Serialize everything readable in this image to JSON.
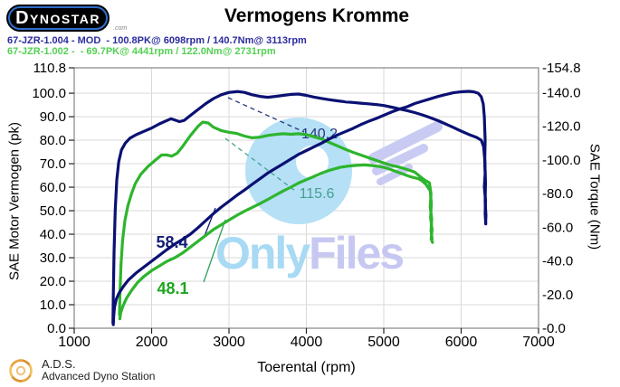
{
  "header": {
    "logo": {
      "text": "DYNOSTAR",
      "suffix": ".com"
    },
    "title": "Vermogens Kromme",
    "runs": [
      {
        "label": "67-JZR-1.004 - MOD  - 100.8PK@ 6098rpm / 140.7Nm@ 3113rpm",
        "color": "#2b2b9e"
      },
      {
        "label": "67-JZR-1.002 -  - 69.7PK@ 4441rpm / 122.0Nm@ 2731rpm",
        "color": "#53d053"
      }
    ]
  },
  "chart_data": {
    "type": "line",
    "title": "Vermogens Kromme",
    "xlabel": "Toerental (rpm)",
    "ylabel_left": "SAE Motor Vermogen (pk)",
    "ylabel_right": "SAE Torque (Nm)",
    "xlim": [
      1000,
      7000
    ],
    "ylim_left": [
      0,
      110.8
    ],
    "ylim_right": [
      0,
      154.8
    ],
    "grid": true,
    "grid_color": "#d9d9d9",
    "border_color": "#6e6e6e",
    "tick_color": "#222222",
    "x_ticks": [
      1000,
      2000,
      3000,
      4000,
      5000,
      6000,
      7000
    ],
    "y_ticks_left": {
      "labels": [
        "110.8",
        "100.0",
        "90.0",
        "80.0",
        "70.0",
        "60.0",
        "50.0",
        "40.0",
        "30.0",
        "20.0",
        "10.0",
        "0.0"
      ],
      "values": [
        110.8,
        100,
        90,
        80,
        70,
        60,
        50,
        40,
        30,
        20,
        10,
        0
      ]
    },
    "y_ticks_right": {
      "labels": [
        "-154.8",
        "-140.0",
        "-120.0",
        "-100.0",
        "-80.0",
        "-60.0",
        "-40.0",
        "-20.0",
        "-0.0"
      ],
      "values": [
        154.8,
        140,
        120,
        100,
        80,
        60,
        40,
        20,
        0
      ]
    },
    "series": [
      {
        "name": "torque-run-002",
        "axis": "right",
        "color": "#2db52d",
        "points": [
          [
            1585,
            8
          ],
          [
            1592,
            22
          ],
          [
            1605,
            38
          ],
          [
            1625,
            52
          ],
          [
            1655,
            64
          ],
          [
            1695,
            73
          ],
          [
            1740,
            80
          ],
          [
            1790,
            86
          ],
          [
            1860,
            91.5
          ],
          [
            1950,
            96
          ],
          [
            2050,
            100
          ],
          [
            2130,
            103
          ],
          [
            2200,
            103
          ],
          [
            2260,
            102.3
          ],
          [
            2330,
            104
          ],
          [
            2400,
            108
          ],
          [
            2500,
            114.5
          ],
          [
            2600,
            120
          ],
          [
            2660,
            122.5
          ],
          [
            2731,
            122
          ],
          [
            2800,
            119.5
          ],
          [
            2900,
            117.5
          ],
          [
            3000,
            116.5
          ],
          [
            3100,
            115.8
          ],
          [
            3200,
            114.2
          ],
          [
            3300,
            113.2
          ],
          [
            3400,
            113.6
          ],
          [
            3500,
            114.6
          ],
          [
            3600,
            115.2
          ],
          [
            3700,
            115.6
          ],
          [
            3800,
            115.3
          ],
          [
            3900,
            115.6
          ],
          [
            4000,
            115.1
          ],
          [
            4100,
            113.8
          ],
          [
            4200,
            112.4
          ],
          [
            4300,
            110.4
          ],
          [
            4400,
            108.4
          ],
          [
            4500,
            106.4
          ],
          [
            4600,
            104.6
          ],
          [
            4700,
            103
          ],
          [
            4800,
            101.4
          ],
          [
            4900,
            99.8
          ],
          [
            5000,
            98.2
          ],
          [
            5100,
            96.8
          ],
          [
            5200,
            95.8
          ],
          [
            5300,
            94.4
          ],
          [
            5400,
            92.8
          ],
          [
            5500,
            89
          ],
          [
            5550,
            87.5
          ],
          [
            5590,
            86.5
          ],
          [
            5610,
            80
          ],
          [
            5600,
            72
          ],
          [
            5620,
            65
          ],
          [
            5610,
            58
          ],
          [
            5625,
            53
          ]
        ]
      },
      {
        "name": "power-run-002",
        "axis": "left",
        "color": "#2db52d",
        "points": [
          [
            1590,
            4
          ],
          [
            1600,
            6.5
          ],
          [
            1630,
            9.5
          ],
          [
            1680,
            13
          ],
          [
            1750,
            16.5
          ],
          [
            1820,
            19.5
          ],
          [
            1900,
            22
          ],
          [
            2000,
            24.5
          ],
          [
            2100,
            26.5
          ],
          [
            2200,
            28.5
          ],
          [
            2300,
            30
          ],
          [
            2400,
            32
          ],
          [
            2500,
            34.5
          ],
          [
            2600,
            37
          ],
          [
            2700,
            39.5
          ],
          [
            2800,
            42
          ],
          [
            2900,
            44
          ],
          [
            3000,
            46
          ],
          [
            3100,
            48
          ],
          [
            3200,
            49.8
          ],
          [
            3300,
            51.4
          ],
          [
            3400,
            53
          ],
          [
            3500,
            54.8
          ],
          [
            3600,
            56.6
          ],
          [
            3700,
            58.4
          ],
          [
            3800,
            60
          ],
          [
            3900,
            61.8
          ],
          [
            4000,
            63.2
          ],
          [
            4100,
            64.6
          ],
          [
            4200,
            66
          ],
          [
            4300,
            67.2
          ],
          [
            4441,
            68.5
          ],
          [
            4550,
            69
          ],
          [
            4650,
            69.3
          ],
          [
            4750,
            69.5
          ],
          [
            4850,
            69.2
          ],
          [
            4950,
            68.8
          ],
          [
            5050,
            68
          ],
          [
            5150,
            66.8
          ],
          [
            5250,
            65.6
          ],
          [
            5350,
            64.4
          ],
          [
            5450,
            63.6
          ],
          [
            5500,
            62.6
          ],
          [
            5550,
            61
          ],
          [
            5600,
            58.5
          ],
          [
            5615,
            53
          ],
          [
            5605,
            47
          ],
          [
            5625,
            42
          ],
          [
            5612,
            38
          ],
          [
            5630,
            36.5
          ]
        ]
      },
      {
        "name": "torque-run-004",
        "axis": "right",
        "color": "#0a1173",
        "points": [
          [
            1500,
            3
          ],
          [
            1505,
            20
          ],
          [
            1515,
            45
          ],
          [
            1530,
            70
          ],
          [
            1550,
            88
          ],
          [
            1575,
            99
          ],
          [
            1610,
            106
          ],
          [
            1660,
            110
          ],
          [
            1720,
            113
          ],
          [
            1800,
            115
          ],
          [
            1900,
            117
          ],
          [
            2000,
            119
          ],
          [
            2100,
            121.5
          ],
          [
            2200,
            123.5
          ],
          [
            2250,
            124.5
          ],
          [
            2300,
            123.8
          ],
          [
            2360,
            122.8
          ],
          [
            2420,
            123.5
          ],
          [
            2500,
            126.5
          ],
          [
            2600,
            130
          ],
          [
            2700,
            133.5
          ],
          [
            2800,
            136.5
          ],
          [
            2900,
            138.8
          ],
          [
            3000,
            140.2
          ],
          [
            3113,
            140.7
          ],
          [
            3200,
            140.2
          ],
          [
            3300,
            138.8
          ],
          [
            3400,
            137.8
          ],
          [
            3500,
            137.3
          ],
          [
            3600,
            137.8
          ],
          [
            3700,
            138.4
          ],
          [
            3800,
            139
          ],
          [
            3900,
            139.2
          ],
          [
            4000,
            138.4
          ],
          [
            4100,
            137.4
          ],
          [
            4200,
            136.6
          ],
          [
            4300,
            135.8
          ],
          [
            4400,
            135.2
          ],
          [
            4500,
            134.6
          ],
          [
            4600,
            134.2
          ],
          [
            4700,
            133.8
          ],
          [
            4800,
            133.4
          ],
          [
            4900,
            133
          ],
          [
            5000,
            132.4
          ],
          [
            5100,
            131.4
          ],
          [
            5200,
            130.4
          ],
          [
            5300,
            129.4
          ],
          [
            5400,
            128.2
          ],
          [
            5500,
            126.8
          ],
          [
            5600,
            125.2
          ],
          [
            5700,
            123.4
          ],
          [
            5800,
            121.4
          ],
          [
            5900,
            119.4
          ],
          [
            6000,
            117.2
          ],
          [
            6100,
            115.2
          ],
          [
            6200,
            113.4
          ],
          [
            6260,
            111.8
          ],
          [
            6290,
            108
          ],
          [
            6305,
            100
          ],
          [
            6310,
            92
          ],
          [
            6300,
            84
          ],
          [
            6315,
            76
          ],
          [
            6310,
            68
          ],
          [
            6318,
            62
          ]
        ]
      },
      {
        "name": "power-run-004",
        "axis": "left",
        "color": "#0a1173",
        "points": [
          [
            1505,
            1.5
          ],
          [
            1510,
            5
          ],
          [
            1520,
            9
          ],
          [
            1545,
            12.5
          ],
          [
            1580,
            15
          ],
          [
            1640,
            18
          ],
          [
            1700,
            20.5
          ],
          [
            1800,
            23.5
          ],
          [
            1900,
            26
          ],
          [
            2000,
            28.5
          ],
          [
            2100,
            31
          ],
          [
            2200,
            33.5
          ],
          [
            2300,
            35.8
          ],
          [
            2400,
            37.8
          ],
          [
            2500,
            40
          ],
          [
            2600,
            42.8
          ],
          [
            2700,
            45.8
          ],
          [
            2800,
            48.8
          ],
          [
            2900,
            51.5
          ],
          [
            3000,
            54
          ],
          [
            3100,
            56.5
          ],
          [
            3200,
            58.8
          ],
          [
            3300,
            61.2
          ],
          [
            3400,
            63.6
          ],
          [
            3500,
            66
          ],
          [
            3600,
            68
          ],
          [
            3700,
            70
          ],
          [
            3800,
            72
          ],
          [
            3900,
            74
          ],
          [
            4000,
            75.6
          ],
          [
            4100,
            77.2
          ],
          [
            4200,
            78.8
          ],
          [
            4300,
            80.6
          ],
          [
            4400,
            82.2
          ],
          [
            4500,
            83.6
          ],
          [
            4600,
            85
          ],
          [
            4700,
            86.6
          ],
          [
            4800,
            88
          ],
          [
            4900,
            89.2
          ],
          [
            5000,
            90.6
          ],
          [
            5100,
            92
          ],
          [
            5200,
            93.2
          ],
          [
            5300,
            94.2
          ],
          [
            5400,
            95.6
          ],
          [
            5500,
            96.6
          ],
          [
            5600,
            97.6
          ],
          [
            5700,
            98.6
          ],
          [
            5800,
            99.4
          ],
          [
            5900,
            100.2
          ],
          [
            6000,
            100.6
          ],
          [
            6098,
            100.8
          ],
          [
            6160,
            100.6
          ],
          [
            6220,
            100
          ],
          [
            6260,
            98.5
          ],
          [
            6285,
            95.5
          ],
          [
            6300,
            90
          ],
          [
            6310,
            80
          ],
          [
            6305,
            72
          ],
          [
            6315,
            62
          ],
          [
            6310,
            54
          ],
          [
            6320,
            48
          ],
          [
            6316,
            44.6
          ]
        ]
      }
    ],
    "annotations": [
      {
        "text": "140.2",
        "x": 353,
        "y": 153,
        "color": "#27357f",
        "bold": false,
        "size": 16,
        "line": {
          "x1": 252,
          "y1": 108,
          "x2": 336,
          "y2": 146,
          "dash": true,
          "color": "#27357f"
        }
      },
      {
        "text": "115.6",
        "x": 350,
        "y": 219,
        "color": "#46a08e",
        "bold": false,
        "size": 16,
        "line": {
          "x1": 249,
          "y1": 153,
          "x2": 326,
          "y2": 211,
          "dash": true,
          "color": "#46a08e"
        }
      },
      {
        "text": "58.4",
        "x": 190,
        "y": 274,
        "color": "#131c74",
        "bold": true,
        "size": 18,
        "line": {
          "x1": 238,
          "y1": 230,
          "x2": 226,
          "y2": 261,
          "dash": false,
          "color": "#131c74"
        }
      },
      {
        "text": "48.1",
        "x": 191,
        "y": 325,
        "color": "#1ea51e",
        "bold": true,
        "size": 18,
        "line": {
          "x1": 249,
          "y1": 243,
          "x2": 225,
          "y2": 312,
          "dash": false,
          "color": "#2ca05a"
        }
      }
    ],
    "legend": "none"
  },
  "watermark": {
    "part1": "Only",
    "part2": "Files",
    "color1": "#a8daf3",
    "color2": "#c6c8f1",
    "ring_color": "#b5e0f6",
    "wing_color": "#c9cbf3"
  },
  "footer": {
    "abbr": "A.D.S.",
    "name": "Advanced Dyno Station"
  }
}
